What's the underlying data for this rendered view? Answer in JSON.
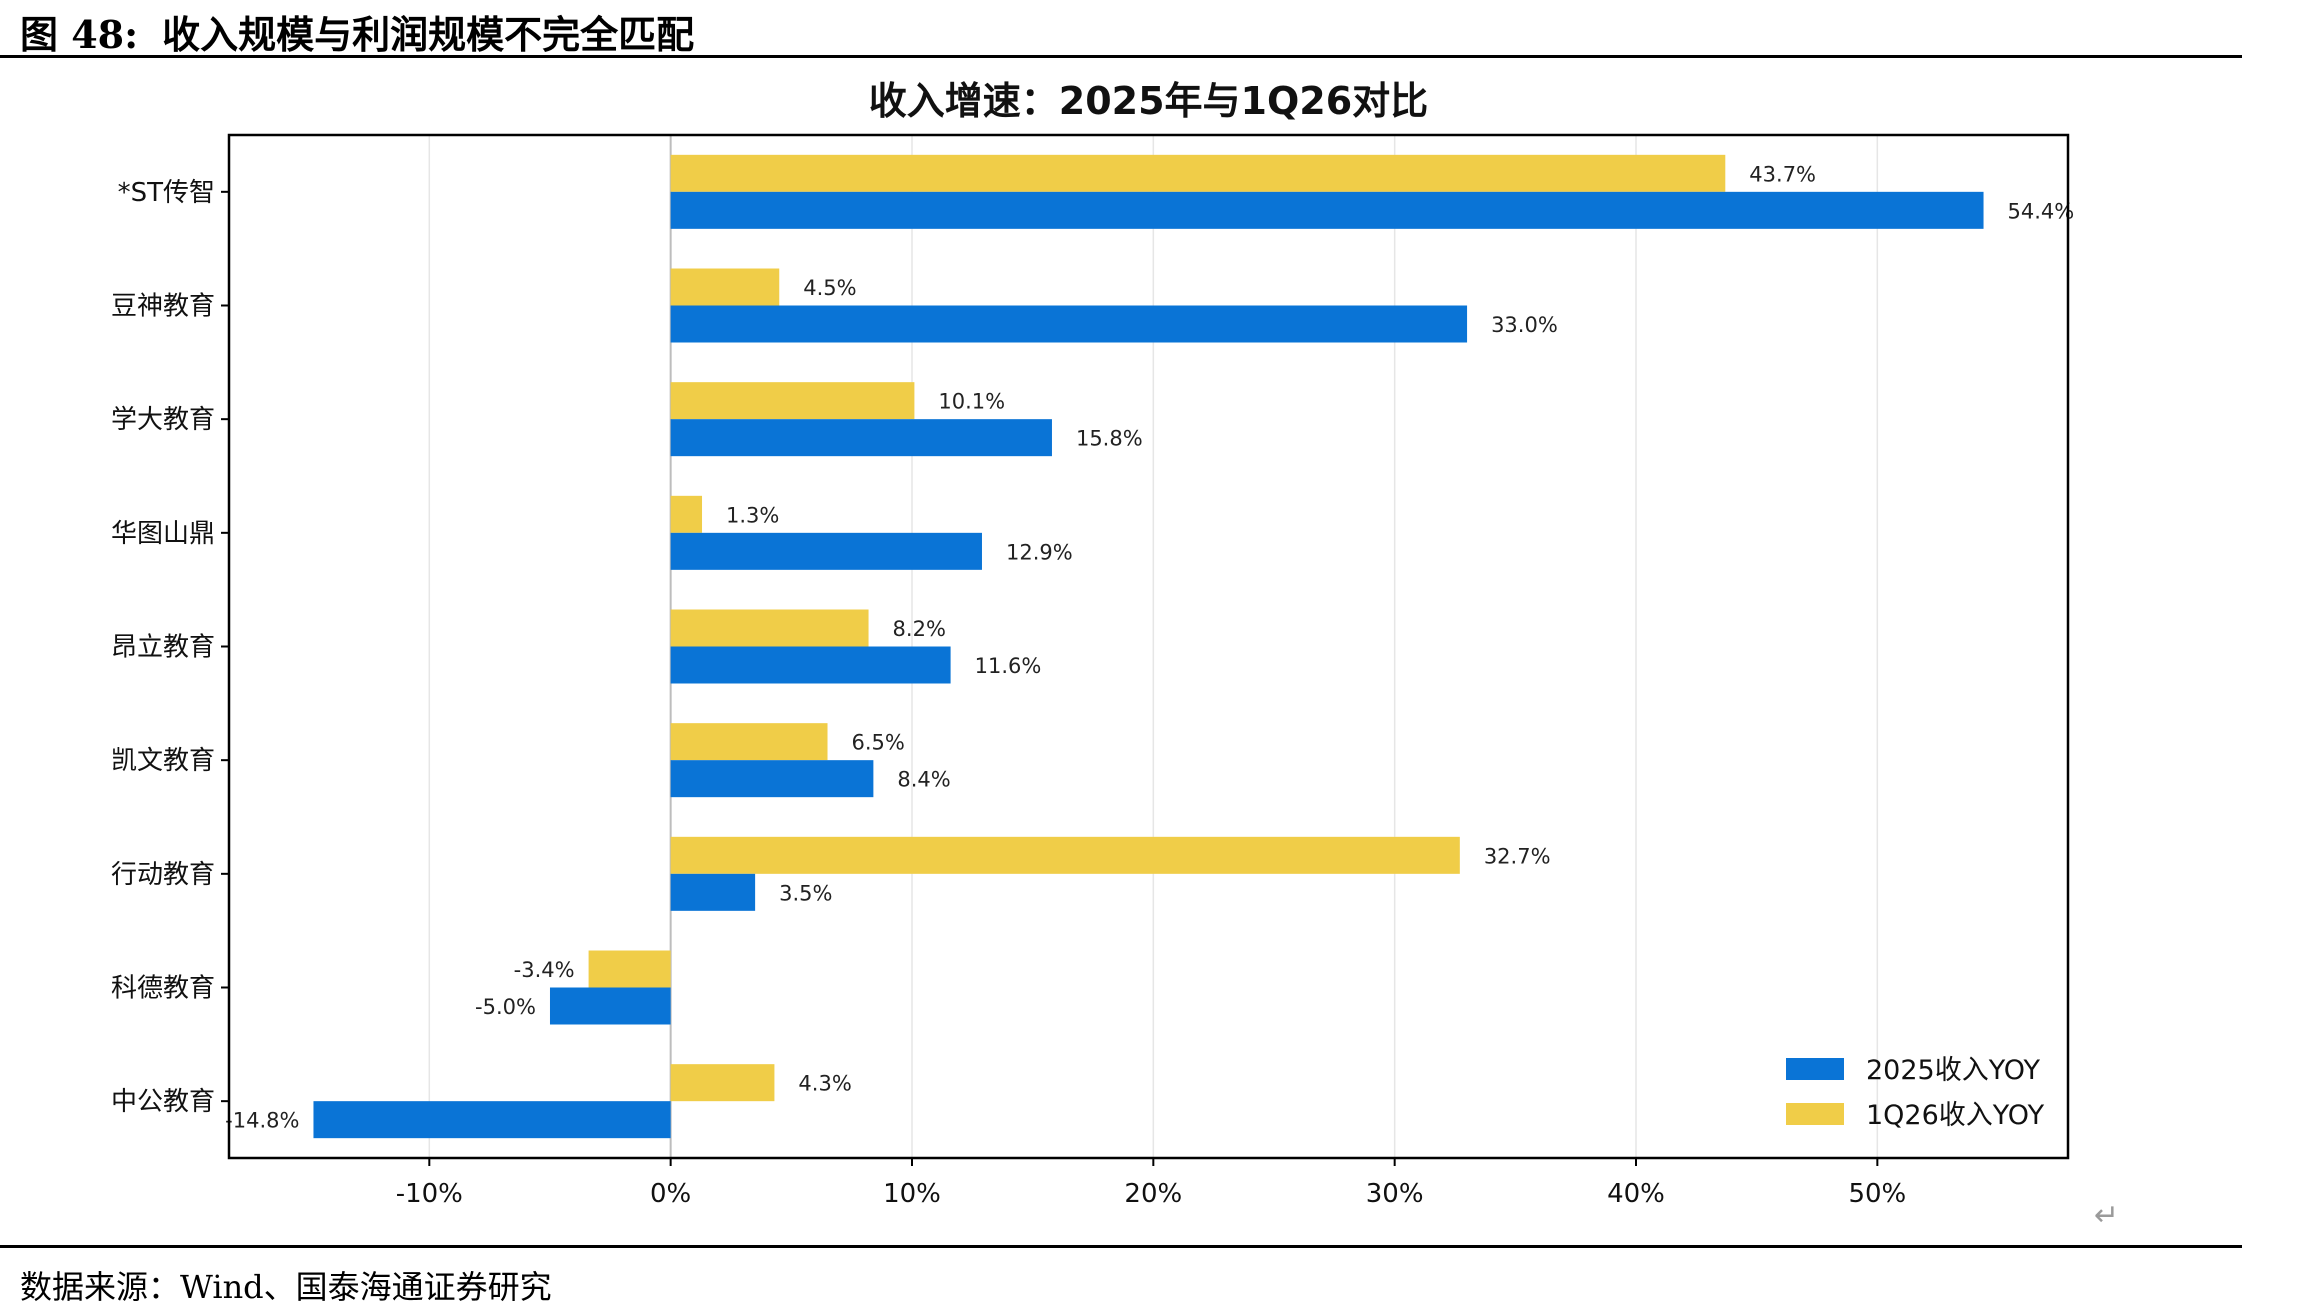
{
  "page": {
    "figure_label": "图 48:",
    "figure_title": "收入规模与利润规模不完全匹配",
    "source": "数据来源：Wind、国泰海通证券研究",
    "return_glyph": "↵"
  },
  "chart_data": {
    "type": "bar",
    "orientation": "horizontal",
    "title": "收入增速：2025年与1Q26对比",
    "categories": [
      "*ST传智",
      "豆神教育",
      "学大教育",
      "华图山鼎",
      "昂立教育",
      "凯文教育",
      "行动教育",
      "科德教育",
      "中公教育"
    ],
    "series": [
      {
        "name": "1Q26收入YOY",
        "color": "#f0cd48",
        "values": [
          43.7,
          4.5,
          10.1,
          1.3,
          8.2,
          6.5,
          32.7,
          -3.4,
          4.3
        ],
        "labels": [
          "43.7%",
          "4.5%",
          "10.1%",
          "1.3%",
          "8.2%",
          "6.5%",
          "32.7%",
          "-3.4%",
          "4.3%"
        ]
      },
      {
        "name": "2025收入YOY",
        "color": "#0a74d6",
        "values": [
          54.4,
          33.0,
          15.8,
          12.9,
          11.6,
          8.4,
          3.5,
          -5.0,
          -14.8
        ],
        "labels": [
          "54.4%",
          "33.0%",
          "15.8%",
          "12.9%",
          "11.6%",
          "8.4%",
          "3.5%",
          "-5.0%",
          "-14.8%"
        ]
      }
    ],
    "xlim": [
      -18.3,
      57.9
    ],
    "xticks": [
      -10,
      0,
      10,
      20,
      30,
      40,
      50
    ],
    "xtick_labels": [
      "-10%",
      "0%",
      "10%",
      "20%",
      "30%",
      "40%",
      "50%"
    ],
    "grid": "vertical",
    "legend": {
      "position": "bottom-right",
      "items": [
        {
          "name": "2025收入YOY",
          "color": "#0a74d6"
        },
        {
          "name": "1Q26收入YOY",
          "color": "#f0cd48"
        }
      ]
    }
  }
}
